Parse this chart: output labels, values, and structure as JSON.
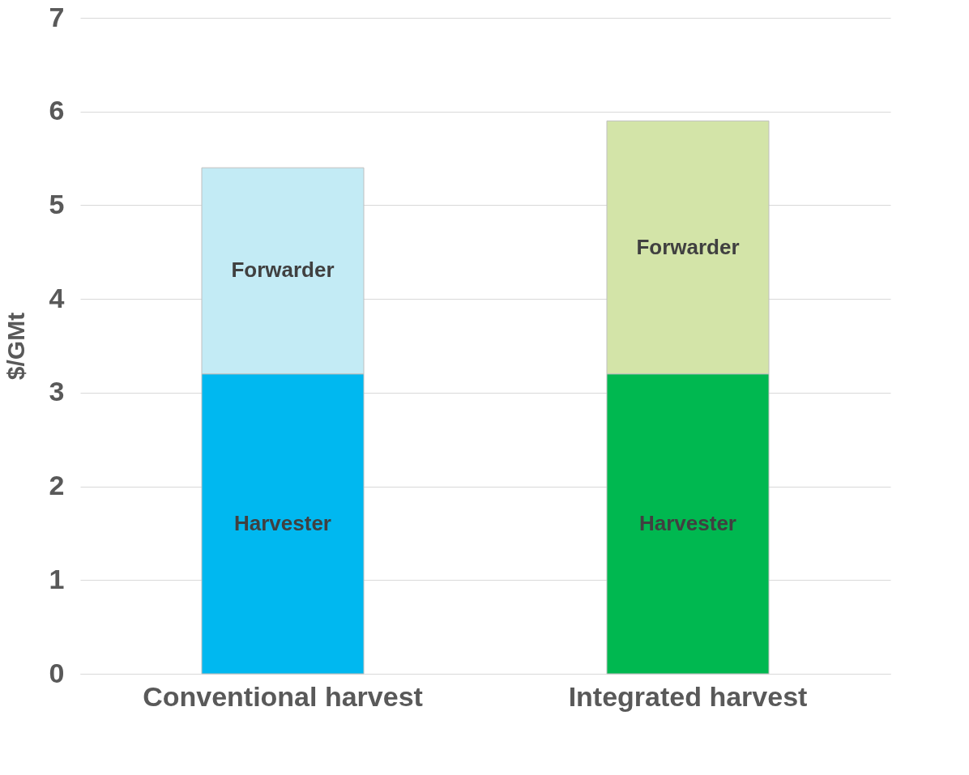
{
  "chart_data": {
    "type": "bar",
    "ylabel": "$/GMt",
    "categories": [
      "Conventional harvest",
      "Integrated harvest"
    ],
    "stacked": true,
    "series": [
      {
        "name": "Harvester",
        "colors": [
          "#00b8f0",
          "#00b850"
        ],
        "values": [
          3.2,
          3.2
        ]
      },
      {
        "name": "Forwarder",
        "colors": [
          "#c3ebf5",
          "#d3e4a8"
        ],
        "values": [
          2.2,
          2.7
        ]
      }
    ],
    "ylim": [
      0,
      7
    ],
    "yticks": [
      0,
      1,
      2,
      3,
      4,
      5,
      6,
      7
    ],
    "grid": "y"
  }
}
